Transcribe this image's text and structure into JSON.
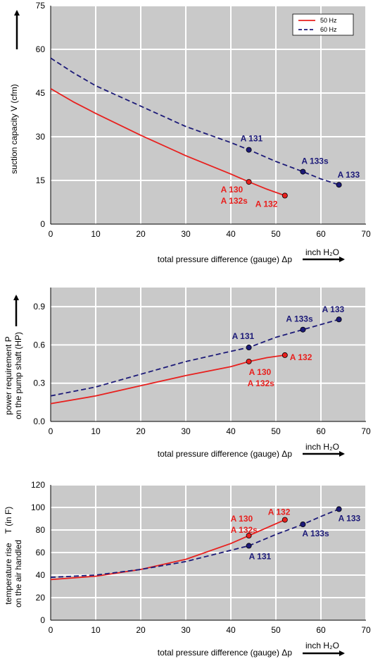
{
  "colors": {
    "s50": "#e8201e",
    "s60": "#1c1a78",
    "plot_bg": "#c9c9c9",
    "grid": "#ffffff"
  },
  "legend": {
    "s50": "50 Hz",
    "s60": "60 Hz"
  },
  "chart_data": [
    {
      "type": "line",
      "xlabel": "total pressure difference (gauge)  Δp",
      "xunit": "inch H₂O",
      "ylabel": "suction capacity V (cfm)",
      "xlim": [
        0,
        70
      ],
      "ylim": [
        0,
        75
      ],
      "xticks": [
        0,
        10,
        20,
        30,
        40,
        50,
        60,
        70
      ],
      "yticks": [
        0,
        15,
        30,
        45,
        60,
        75
      ],
      "legend": "top-right",
      "series": [
        {
          "name": "50 Hz",
          "key": "s50",
          "style": "solid",
          "x": [
            0,
            5,
            10,
            20,
            30,
            40,
            44,
            48,
            52
          ],
          "y": [
            46.5,
            42,
            38,
            30.5,
            23.5,
            17.2,
            14.5,
            12,
            9.8
          ]
        },
        {
          "name": "60 Hz",
          "key": "s60",
          "style": "dashed",
          "x": [
            0,
            5,
            10,
            20,
            30,
            40,
            44,
            50,
            56,
            60,
            64
          ],
          "y": [
            57,
            52,
            47.5,
            40.5,
            33.5,
            28,
            25.5,
            21.5,
            18,
            15.5,
            13.5
          ]
        }
      ],
      "markers": [
        {
          "series": "s50",
          "x": 44,
          "y": 14.5
        },
        {
          "series": "s50",
          "x": 52,
          "y": 9.8
        },
        {
          "series": "s60",
          "x": 44,
          "y": 25.5
        },
        {
          "series": "s60",
          "x": 56,
          "y": 18
        },
        {
          "series": "s60",
          "x": 64,
          "y": 13.5
        }
      ],
      "annotations": [
        {
          "text": "A 131",
          "color": "s60"
        },
        {
          "text": "A 133s",
          "color": "s60"
        },
        {
          "text": "A 133",
          "color": "s60"
        },
        {
          "text": "A 130",
          "color": "s50"
        },
        {
          "text": "A 132s",
          "color": "s50"
        },
        {
          "text": "A 132",
          "color": "s50"
        }
      ]
    },
    {
      "type": "line",
      "xlabel": "total pressure difference (gauge)  Δp",
      "xunit": "inch H₂O",
      "ylabel": [
        "power requirement P",
        "on the pump shaft (HP)"
      ],
      "xlim": [
        0,
        70
      ],
      "ylim": [
        0,
        1.05
      ],
      "xticks": [
        0,
        10,
        20,
        30,
        40,
        50,
        60,
        70
      ],
      "yticks": [
        0.0,
        0.3,
        0.6,
        0.9
      ],
      "ytick_labels": [
        "0.0",
        "0.3",
        "0.6",
        "0.9"
      ],
      "series": [
        {
          "name": "50 Hz",
          "key": "s50",
          "style": "solid",
          "x": [
            0,
            10,
            20,
            30,
            40,
            44,
            48,
            52
          ],
          "y": [
            0.14,
            0.2,
            0.28,
            0.36,
            0.43,
            0.47,
            0.5,
            0.52
          ]
        },
        {
          "name": "60 Hz",
          "key": "s60",
          "style": "dashed",
          "x": [
            0,
            10,
            20,
            30,
            40,
            44,
            50,
            56,
            64
          ],
          "y": [
            0.2,
            0.27,
            0.37,
            0.47,
            0.55,
            0.58,
            0.66,
            0.72,
            0.8
          ]
        }
      ],
      "markers": [
        {
          "series": "s50",
          "x": 44,
          "y": 0.47
        },
        {
          "series": "s50",
          "x": 52,
          "y": 0.52
        },
        {
          "series": "s60",
          "x": 44,
          "y": 0.58
        },
        {
          "series": "s60",
          "x": 56,
          "y": 0.72
        },
        {
          "series": "s60",
          "x": 64,
          "y": 0.8
        }
      ],
      "annotations": [
        {
          "text": "A 131",
          "color": "s60"
        },
        {
          "text": "A 133s",
          "color": "s60"
        },
        {
          "text": "A 133",
          "color": "s60"
        },
        {
          "text": "A 130",
          "color": "s50"
        },
        {
          "text": "A 132s",
          "color": "s50"
        },
        {
          "text": "A 132",
          "color": "s50"
        }
      ]
    },
    {
      "type": "line",
      "xlabel": "total pressure difference (gauge)  Δp",
      "xunit": "inch H₂O",
      "ylabel": [
        "temperature rise",
        "on the air handled"
      ],
      "ylabel_extra": "T     (in F)",
      "xlim": [
        0,
        70
      ],
      "ylim": [
        0,
        120
      ],
      "xticks": [
        0,
        10,
        20,
        30,
        40,
        50,
        60,
        70
      ],
      "yticks": [
        0,
        20,
        40,
        60,
        80,
        100,
        120
      ],
      "series": [
        {
          "name": "50 Hz",
          "key": "s50",
          "style": "solid",
          "x": [
            0,
            10,
            20,
            30,
            40,
            44,
            48,
            52
          ],
          "y": [
            36,
            39,
            45,
            54,
            68,
            75,
            82,
            89
          ]
        },
        {
          "name": "60 Hz",
          "key": "s60",
          "style": "dashed",
          "x": [
            0,
            10,
            20,
            30,
            40,
            44,
            50,
            56,
            60,
            64
          ],
          "y": [
            38,
            40,
            45,
            52,
            62,
            66,
            76,
            85,
            92,
            98.5
          ]
        }
      ],
      "markers": [
        {
          "series": "s50",
          "x": 44,
          "y": 75
        },
        {
          "series": "s50",
          "x": 52,
          "y": 89
        },
        {
          "series": "s60",
          "x": 44,
          "y": 66
        },
        {
          "series": "s60",
          "x": 56,
          "y": 85
        },
        {
          "series": "s60",
          "x": 64,
          "y": 98.5
        }
      ],
      "annotations": [
        {
          "text": "A 130",
          "color": "s50"
        },
        {
          "text": "A 132s",
          "color": "s50"
        },
        {
          "text": "A 132",
          "color": "s50"
        },
        {
          "text": "A 131",
          "color": "s60"
        },
        {
          "text": "A 133s",
          "color": "s60"
        },
        {
          "text": "A 133",
          "color": "s60"
        }
      ]
    }
  ]
}
